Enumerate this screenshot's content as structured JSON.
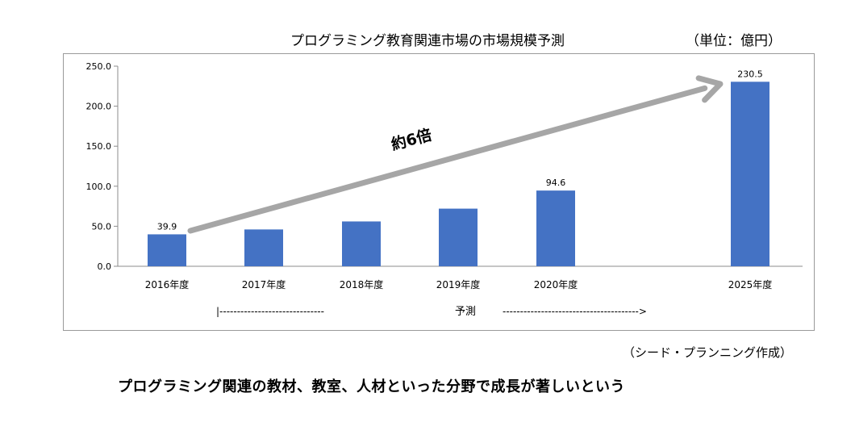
{
  "header": {
    "title": "プログラミング教育関連市場の市場規模予測",
    "unit": "（単位：億円）"
  },
  "chart_data": {
    "type": "bar",
    "categories": [
      "2016年度",
      "2017年度",
      "2018年度",
      "2019年度",
      "2020年度",
      "2025年度"
    ],
    "values": [
      39.9,
      46,
      56,
      72,
      94.6,
      230.5
    ],
    "data_labels": [
      "39.9",
      "",
      "",
      "",
      "94.6",
      "230.5"
    ],
    "yticks": [
      "0.0",
      "50.0",
      "100.0",
      "150.0",
      "200.0",
      "250.0"
    ],
    "ylim": [
      0,
      250
    ],
    "grid": false,
    "bar_color": "#4472C4",
    "arrow_color": "#A6A6A6",
    "annotation": "約6倍",
    "forecast_label": "予測",
    "forecast_line_left": "|------------------------------",
    "forecast_line_right": "--------------------------------------->"
  },
  "footer": {
    "source": "（シード・プランニング作成）",
    "caption": "プログラミング関連の教材、教室、人材といった分野で成長が著しいという"
  }
}
